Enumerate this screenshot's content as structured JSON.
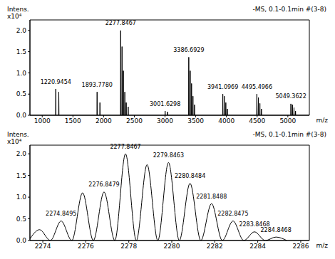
{
  "chart_data": [
    {
      "type": "line",
      "title": "-MS, 0.1-0.1min #(3-8)",
      "y_label": "Intens.",
      "y_multiplier_label": "x10⁴",
      "x_label": "m/z",
      "color": "#000000",
      "line_style": "solid",
      "x": [
        800,
        1217.9,
        1220.9454,
        1223.9,
        1267,
        1270,
        1273,
        1890.8,
        1893.778,
        1896.8,
        1937,
        1940,
        1943,
        2274.8,
        2277.8467,
        2280.8,
        2297,
        2300,
        2303,
        2319,
        2322,
        2325,
        2342,
        2345,
        2348,
        2365,
        2368,
        2371,
        2397,
        2400,
        2403,
        2998.6,
        3001.6298,
        3004.6,
        3037,
        3040,
        3043,
        3383.7,
        3386.6929,
        3389.7,
        3407,
        3410,
        3413,
        3429,
        3432,
        3435,
        3452,
        3455,
        3458,
        3477,
        3480,
        3483,
        3938.1,
        3941.0969,
        3944.1,
        3962,
        3965,
        3968,
        3987,
        3990,
        3993,
        4012,
        4015,
        4018,
        4492.5,
        4495.4966,
        4498.5,
        4517,
        4520,
        4523,
        4542,
        4545,
        4548,
        4567,
        4570,
        4573,
        5046.4,
        5049.3622,
        5052.4,
        5072,
        5075,
        5078,
        5097,
        5100,
        5103,
        5122,
        5125,
        5128,
        5350
      ],
      "values": [
        0,
        0,
        0.62,
        0,
        0,
        0.55,
        0,
        0,
        0.55,
        0,
        0,
        0.3,
        0,
        0,
        2.0,
        0,
        0,
        1.62,
        0,
        0,
        1.05,
        0,
        0,
        0.55,
        0,
        0,
        0.3,
        0,
        0,
        0.2,
        0,
        0,
        0.1,
        0,
        0,
        0.08,
        0,
        0,
        1.37,
        0,
        0,
        1.05,
        0,
        0,
        0.75,
        0,
        0,
        0.45,
        0,
        0,
        0.25,
        0,
        0,
        0.5,
        0,
        0,
        0.45,
        0,
        0,
        0.3,
        0,
        0,
        0.15,
        0,
        0,
        0.5,
        0,
        0,
        0.42,
        0,
        0,
        0.28,
        0,
        0,
        0.15,
        0,
        0,
        0.27,
        0,
        0,
        0.25,
        0,
        0,
        0.18,
        0,
        0,
        0.1,
        0,
        0
      ],
      "annotations": [
        {
          "x": 1220.9454,
          "y": 0.62,
          "label": "1220.9454"
        },
        {
          "x": 1893.778,
          "y": 0.55,
          "label": "1893.7780"
        },
        {
          "x": 2277.8467,
          "y": 2.0,
          "label": "2277.8467"
        },
        {
          "x": 3001.6298,
          "y": 0.1,
          "label": "3001.6298"
        },
        {
          "x": 3386.6929,
          "y": 1.37,
          "label": "3386.6929"
        },
        {
          "x": 3941.0969,
          "y": 0.5,
          "label": "3941.0969"
        },
        {
          "x": 4495.4966,
          "y": 0.5,
          "label": "4495.4966"
        },
        {
          "x": 5049.3622,
          "y": 0.27,
          "label": "5049.3622"
        }
      ],
      "xlim": [
        800,
        5350
      ],
      "xticks": [
        1000,
        1500,
        2000,
        2500,
        3000,
        3500,
        4000,
        4500,
        5000
      ],
      "ylim": [
        0,
        2.25
      ],
      "yticks": [
        {
          "value": 0,
          "label": "0.0"
        },
        0.5,
        {
          "value": 1,
          "label": "1.0"
        },
        1.5,
        {
          "value": 2,
          "label": "2.0"
        }
      ],
      "grid": false
    },
    {
      "type": "line",
      "title": "-MS, 0.1-0.1min #(3-8)",
      "y_label": "Intens.",
      "y_multiplier_label": "x10⁴",
      "x_label": "m/z",
      "color": "#000000",
      "line_style": "smooth",
      "x": [
        2273.35,
        2273.85,
        2274.35,
        2274.8495,
        2275.35,
        2275.85,
        2276.35,
        2276.8479,
        2277.35,
        2277.8467,
        2278.35,
        2278.85,
        2279.35,
        2279.8463,
        2280.35,
        2280.8484,
        2281.35,
        2281.8488,
        2282.35,
        2282.8475,
        2283.35,
        2283.8468,
        2284.35,
        2284.8468,
        2285.35
      ],
      "values": [
        0,
        0.25,
        0,
        0.45,
        0,
        1.1,
        0,
        1.12,
        0,
        2.0,
        0,
        1.75,
        0,
        1.8,
        0,
        1.32,
        0,
        0.85,
        0,
        0.45,
        0,
        0.2,
        0,
        0.08,
        0
      ],
      "annotations": [
        {
          "x": 2274.8495,
          "y": 0.45,
          "label": "2274.8495"
        },
        {
          "x": 2276.8479,
          "y": 1.12,
          "label": "2276.8479"
        },
        {
          "x": 2277.8467,
          "y": 2.0,
          "label": "2277.8467"
        },
        {
          "x": 2279.8463,
          "y": 1.8,
          "label": "2279.8463"
        },
        {
          "x": 2280.8484,
          "y": 1.32,
          "label": "2280.8484"
        },
        {
          "x": 2281.8488,
          "y": 0.85,
          "label": "2281.8488"
        },
        {
          "x": 2282.8475,
          "y": 0.45,
          "label": "2282.8475"
        },
        {
          "x": 2283.8468,
          "y": 0.2,
          "label": "2283.8468"
        },
        {
          "x": 2284.8468,
          "y": 0.08,
          "label": "2284.8468"
        }
      ],
      "xlim": [
        2273.4,
        2286.4
      ],
      "xticks": [
        2274,
        2276,
        2278,
        2280,
        2282,
        2284,
        2286
      ],
      "ylim": [
        0,
        2.2
      ],
      "yticks": [
        {
          "value": 0,
          "label": "0.0"
        },
        0.5,
        {
          "value": 1,
          "label": "1.0"
        },
        1.5,
        {
          "value": 2,
          "label": "2.0"
        }
      ],
      "grid": false
    }
  ]
}
